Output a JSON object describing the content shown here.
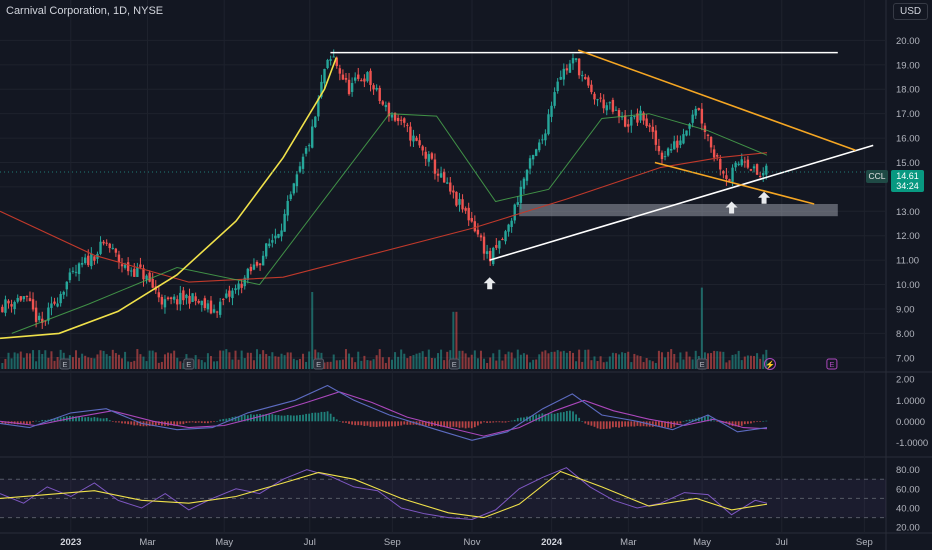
{
  "header": {
    "title": "Carnival Corporation, 1D, NYSE",
    "currency": "USD"
  },
  "badges": {
    "ticker": "CCL",
    "price": "14.61",
    "countdown": "34:24"
  },
  "markers": {
    "earnings": "E",
    "dividend": "⚡"
  },
  "chart_data": [
    {
      "type": "candlestick",
      "panel": "price",
      "yaxis": {
        "range": [
          6.5,
          21
        ],
        "ticks": [
          "20.00",
          "19.00",
          "18.00",
          "17.00",
          "16.00",
          "15.00",
          "14.00",
          "13.00",
          "12.00",
          "11.00",
          "10.00",
          "9.00",
          "8.00",
          "7.00"
        ]
      },
      "xaxis": {
        "ticks": [
          "2023",
          "Mar",
          "May",
          "Jul",
          "Sep",
          "Nov",
          "2024",
          "Mar",
          "May",
          "Jul",
          "Sep"
        ],
        "bold": [
          "2023",
          "2024"
        ]
      },
      "last_price": 14.61,
      "close_path": [
        {
          "x": 0,
          "y": 9.1
        },
        {
          "x": 0.04,
          "y": 9.5
        },
        {
          "x": 0.07,
          "y": 8.3
        },
        {
          "x": 0.11,
          "y": 10.0
        },
        {
          "x": 0.14,
          "y": 10.8
        },
        {
          "x": 0.18,
          "y": 11.7
        },
        {
          "x": 0.21,
          "y": 10.7
        },
        {
          "x": 0.24,
          "y": 10.5
        },
        {
          "x": 0.28,
          "y": 9.2
        },
        {
          "x": 0.32,
          "y": 9.5
        },
        {
          "x": 0.36,
          "y": 8.9
        },
        {
          "x": 0.4,
          "y": 9.8
        },
        {
          "x": 0.44,
          "y": 11.0
        },
        {
          "x": 0.48,
          "y": 12.6
        },
        {
          "x": 0.51,
          "y": 14.8
        },
        {
          "x": 0.53,
          "y": 16.3
        },
        {
          "x": 0.55,
          "y": 18.8
        },
        {
          "x": 0.565,
          "y": 19.3
        },
        {
          "x": 0.59,
          "y": 18.0
        },
        {
          "x": 0.62,
          "y": 18.6
        },
        {
          "x": 0.65,
          "y": 17.3
        },
        {
          "x": 0.69,
          "y": 16.3
        },
        {
          "x": 0.73,
          "y": 15.0
        },
        {
          "x": 0.77,
          "y": 13.5
        },
        {
          "x": 0.8,
          "y": 12.6
        },
        {
          "x": 0.83,
          "y": 11.0
        },
        {
          "x": 0.86,
          "y": 12.2
        },
        {
          "x": 0.89,
          "y": 14.5
        },
        {
          "x": 0.92,
          "y": 16.0
        },
        {
          "x": 0.945,
          "y": 18.5
        },
        {
          "x": 0.975,
          "y": 19.2
        },
        {
          "x": 1.0,
          "y": 17.8
        },
        {
          "x": 1.03,
          "y": 17.3
        },
        {
          "x": 1.06,
          "y": 16.6
        },
        {
          "x": 1.09,
          "y": 16.9
        },
        {
          "x": 1.12,
          "y": 15.3
        },
        {
          "x": 1.15,
          "y": 15.8
        },
        {
          "x": 1.18,
          "y": 17.4
        },
        {
          "x": 1.21,
          "y": 15.4
        },
        {
          "x": 1.235,
          "y": 14.3
        },
        {
          "x": 1.26,
          "y": 15.3
        },
        {
          "x": 1.285,
          "y": 14.4
        },
        {
          "x": 1.3,
          "y": 14.61
        }
      ],
      "sma_slow": [
        {
          "x": 0,
          "y": 13.0
        },
        {
          "x": 0.16,
          "y": 11.2
        },
        {
          "x": 0.32,
          "y": 10.1
        },
        {
          "x": 0.48,
          "y": 10.3
        },
        {
          "x": 0.64,
          "y": 11.3
        },
        {
          "x": 0.8,
          "y": 12.3
        },
        {
          "x": 0.96,
          "y": 13.5
        },
        {
          "x": 1.12,
          "y": 14.8
        },
        {
          "x": 1.22,
          "y": 15.2
        },
        {
          "x": 1.3,
          "y": 15.4
        }
      ],
      "sma_fast": [
        {
          "x": 0.02,
          "y": 8.0
        },
        {
          "x": 0.15,
          "y": 9.2
        },
        {
          "x": 0.3,
          "y": 10.7
        },
        {
          "x": 0.44,
          "y": 10.0
        },
        {
          "x": 0.55,
          "y": 13.5
        },
        {
          "x": 0.66,
          "y": 17.0
        },
        {
          "x": 0.74,
          "y": 16.9
        },
        {
          "x": 0.84,
          "y": 13.4
        },
        {
          "x": 0.93,
          "y": 13.9
        },
        {
          "x": 1.02,
          "y": 16.8
        },
        {
          "x": 1.1,
          "y": 17.0
        },
        {
          "x": 1.2,
          "y": 16.3
        },
        {
          "x": 1.3,
          "y": 15.3
        }
      ],
      "parabola": [
        {
          "x": 0,
          "y": 7.8
        },
        {
          "x": 0.1,
          "y": 8.0
        },
        {
          "x": 0.2,
          "y": 8.9
        },
        {
          "x": 0.3,
          "y": 10.4
        },
        {
          "x": 0.4,
          "y": 12.6
        },
        {
          "x": 0.48,
          "y": 15.2
        },
        {
          "x": 0.55,
          "y": 18.0
        },
        {
          "x": 0.57,
          "y": 19.3
        }
      ],
      "lines": [
        {
          "name": "resistance",
          "from": [
            0.56,
            19.5
          ],
          "to": [
            1.42,
            19.5
          ],
          "color": "#ffffff"
        },
        {
          "name": "support-trendline",
          "from": [
            0.83,
            11.0
          ],
          "to": [
            1.48,
            15.7
          ],
          "color": "#ffffff"
        },
        {
          "name": "wedge-upper",
          "from": [
            0.98,
            19.6
          ],
          "to": [
            1.45,
            15.5
          ],
          "color": "#f5a623"
        },
        {
          "name": "wedge-lower",
          "from": [
            1.11,
            15.0
          ],
          "to": [
            1.38,
            13.3
          ],
          "color": "#f5a623"
        }
      ],
      "zone": {
        "y_top": 13.3,
        "y_bottom": 12.8,
        "x_from": 0.88,
        "x_to": 1.42
      },
      "arrows": [
        {
          "x": 0.83,
          "y": 10.3
        },
        {
          "x": 1.24,
          "y": 13.4
        },
        {
          "x": 1.295,
          "y": 13.8
        }
      ],
      "earnings_x": [
        0.11,
        0.32,
        0.54,
        0.77,
        1.19,
        1.41
      ],
      "volume_spikes": [
        {
          "x": 0.53,
          "h": 3.5
        },
        {
          "x": 0.77,
          "h": 2.6
        },
        {
          "x": 1.19,
          "h": 3.7
        }
      ]
    },
    {
      "type": "line",
      "panel": "macd",
      "yaxis": {
        "range": [
          -1.6,
          2.2
        ],
        "ticks": [
          "2.00",
          "1.0000",
          "0.0000",
          "-1.0000"
        ]
      },
      "macd": [
        {
          "x": 0,
          "y": -0.1
        },
        {
          "x": 0.05,
          "y": -0.3
        },
        {
          "x": 0.12,
          "y": 0.4
        },
        {
          "x": 0.18,
          "y": 0.6
        },
        {
          "x": 0.24,
          "y": -0.1
        },
        {
          "x": 0.3,
          "y": -0.4
        },
        {
          "x": 0.36,
          "y": -0.3
        },
        {
          "x": 0.42,
          "y": 0.4
        },
        {
          "x": 0.5,
          "y": 1.0
        },
        {
          "x": 0.555,
          "y": 1.7
        },
        {
          "x": 0.6,
          "y": 1.0
        },
        {
          "x": 0.66,
          "y": 0.3
        },
        {
          "x": 0.74,
          "y": -0.4
        },
        {
          "x": 0.8,
          "y": -0.9
        },
        {
          "x": 0.86,
          "y": -0.5
        },
        {
          "x": 0.92,
          "y": 0.6
        },
        {
          "x": 0.97,
          "y": 1.3
        },
        {
          "x": 1.02,
          "y": 0.3
        },
        {
          "x": 1.08,
          "y": 0.0
        },
        {
          "x": 1.14,
          "y": -0.4
        },
        {
          "x": 1.2,
          "y": 0.3
        },
        {
          "x": 1.25,
          "y": -0.5
        },
        {
          "x": 1.3,
          "y": -0.3
        }
      ],
      "signal": [
        {
          "x": 0,
          "y": 0.0
        },
        {
          "x": 0.06,
          "y": -0.2
        },
        {
          "x": 0.13,
          "y": 0.2
        },
        {
          "x": 0.19,
          "y": 0.5
        },
        {
          "x": 0.26,
          "y": 0.0
        },
        {
          "x": 0.32,
          "y": -0.3
        },
        {
          "x": 0.38,
          "y": -0.2
        },
        {
          "x": 0.45,
          "y": 0.3
        },
        {
          "x": 0.52,
          "y": 0.9
        },
        {
          "x": 0.575,
          "y": 1.4
        },
        {
          "x": 0.63,
          "y": 0.9
        },
        {
          "x": 0.69,
          "y": 0.2
        },
        {
          "x": 0.76,
          "y": -0.3
        },
        {
          "x": 0.82,
          "y": -0.7
        },
        {
          "x": 0.88,
          "y": -0.3
        },
        {
          "x": 0.94,
          "y": 0.5
        },
        {
          "x": 0.99,
          "y": 1.0
        },
        {
          "x": 1.04,
          "y": 0.5
        },
        {
          "x": 1.1,
          "y": 0.1
        },
        {
          "x": 1.16,
          "y": -0.2
        },
        {
          "x": 1.21,
          "y": 0.1
        },
        {
          "x": 1.26,
          "y": -0.3
        },
        {
          "x": 1.3,
          "y": -0.35
        }
      ]
    },
    {
      "type": "line",
      "panel": "rsi",
      "yaxis": {
        "range": [
          15,
          90
        ],
        "ticks": [
          "80.00",
          "60.00",
          "40.00",
          "20.00"
        ],
        "bands": [
          70,
          50,
          30
        ]
      },
      "rsi": [
        {
          "x": 0,
          "y": 55
        },
        {
          "x": 0.04,
          "y": 45
        },
        {
          "x": 0.08,
          "y": 62
        },
        {
          "x": 0.12,
          "y": 52
        },
        {
          "x": 0.16,
          "y": 66
        },
        {
          "x": 0.2,
          "y": 48
        },
        {
          "x": 0.24,
          "y": 40
        },
        {
          "x": 0.28,
          "y": 55
        },
        {
          "x": 0.32,
          "y": 38
        },
        {
          "x": 0.36,
          "y": 50
        },
        {
          "x": 0.4,
          "y": 60
        },
        {
          "x": 0.44,
          "y": 55
        },
        {
          "x": 0.48,
          "y": 70
        },
        {
          "x": 0.52,
          "y": 80
        },
        {
          "x": 0.56,
          "y": 73
        },
        {
          "x": 0.6,
          "y": 62
        },
        {
          "x": 0.64,
          "y": 58
        },
        {
          "x": 0.68,
          "y": 40
        },
        {
          "x": 0.72,
          "y": 34
        },
        {
          "x": 0.76,
          "y": 30
        },
        {
          "x": 0.8,
          "y": 28
        },
        {
          "x": 0.84,
          "y": 38
        },
        {
          "x": 0.88,
          "y": 60
        },
        {
          "x": 0.92,
          "y": 72
        },
        {
          "x": 0.96,
          "y": 82
        },
        {
          "x": 1.0,
          "y": 62
        },
        {
          "x": 1.04,
          "y": 48
        },
        {
          "x": 1.08,
          "y": 40
        },
        {
          "x": 1.12,
          "y": 45
        },
        {
          "x": 1.16,
          "y": 56
        },
        {
          "x": 1.2,
          "y": 54
        },
        {
          "x": 1.24,
          "y": 33
        },
        {
          "x": 1.28,
          "y": 48
        },
        {
          "x": 1.3,
          "y": 45
        }
      ],
      "rsi_ma": [
        {
          "x": 0,
          "y": 50
        },
        {
          "x": 0.08,
          "y": 54
        },
        {
          "x": 0.16,
          "y": 58
        },
        {
          "x": 0.24,
          "y": 48
        },
        {
          "x": 0.32,
          "y": 45
        },
        {
          "x": 0.4,
          "y": 52
        },
        {
          "x": 0.48,
          "y": 66
        },
        {
          "x": 0.54,
          "y": 77
        },
        {
          "x": 0.6,
          "y": 70
        },
        {
          "x": 0.68,
          "y": 50
        },
        {
          "x": 0.76,
          "y": 35
        },
        {
          "x": 0.82,
          "y": 30
        },
        {
          "x": 0.88,
          "y": 44
        },
        {
          "x": 0.95,
          "y": 78
        },
        {
          "x": 1.02,
          "y": 62
        },
        {
          "x": 1.1,
          "y": 42
        },
        {
          "x": 1.18,
          "y": 50
        },
        {
          "x": 1.24,
          "y": 38
        },
        {
          "x": 1.3,
          "y": 44
        }
      ]
    }
  ]
}
